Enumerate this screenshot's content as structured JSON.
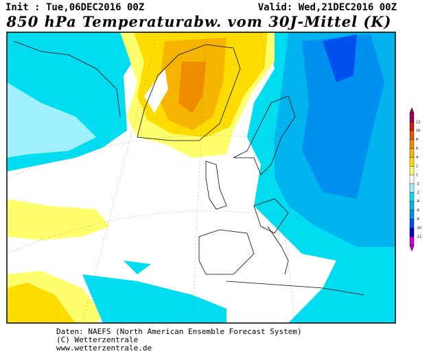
{
  "header": {
    "init": "Init : Tue,06DEC2016 00Z",
    "valid": "Valid: Wed,21DEC2016 00Z",
    "title": "850 hPa Temperaturabw. vom 30J-Mittel (K)"
  },
  "colorbar": {
    "labels": [
      "12",
      "10",
      "8",
      "6",
      "4",
      "2",
      "1",
      "-1",
      "-2",
      "-4",
      "-6",
      "-8",
      "-10",
      "-12"
    ],
    "colors": [
      "#a0005a",
      "#d21414",
      "#e65a00",
      "#f08c00",
      "#f5b400",
      "#ffdc00",
      "#ffff6e",
      "#ffffff",
      "#a0f0ff",
      "#00dcf0",
      "#00b4f0",
      "#0090f0",
      "#0050f0",
      "#0000c8",
      "#c800c8"
    ]
  },
  "footer": {
    "lines": [
      "Daten: NAEFS (North American Ensemble Forecast System)",
      "(C) Wetterzentrale",
      "www.wetterzentrale.de"
    ]
  }
}
